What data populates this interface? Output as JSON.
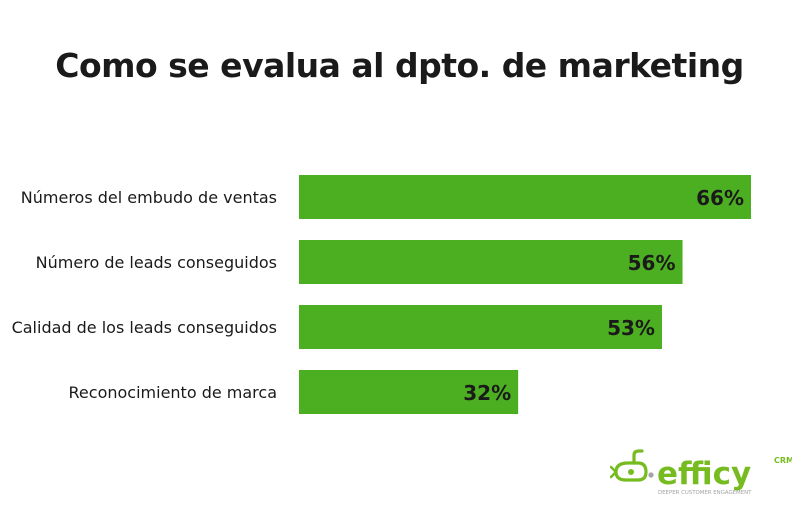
{
  "chart_data": {
    "type": "bar",
    "orientation": "horizontal",
    "title": "Como se evalua al dpto. de marketing",
    "categories": [
      "Números del embudo de ventas",
      "Número de leads conseguidos",
      "Calidad de los leads conseguidos",
      "Reconocimiento de marca"
    ],
    "values": [
      66,
      56,
      53,
      32
    ],
    "value_labels": [
      "66%",
      "56%",
      "53%",
      "32%"
    ],
    "value_unit": "%",
    "xlim": [
      0,
      70
    ],
    "grid": false,
    "legend": "none",
    "bar_color": "#4caf22"
  },
  "logo": {
    "wordmark": "efficy",
    "superscript": "CRM",
    "tagline": "DEEPER CUSTOMER ENGAGEMENT",
    "colors": {
      "green": "#76bc21",
      "gray": "#a3a3a3"
    }
  }
}
